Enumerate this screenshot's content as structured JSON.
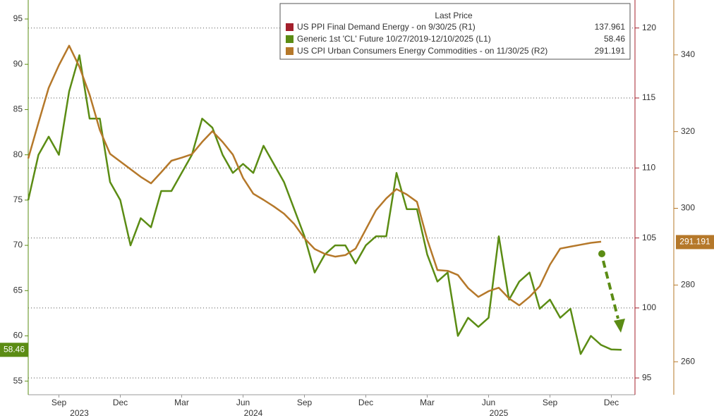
{
  "chart_data": {
    "type": "line",
    "legend_title": "Last Price",
    "legend_corner": "top-right",
    "categories": [
      null,
      null,
      null,
      "Sep",
      null,
      null,
      null,
      null,
      null,
      "Dec",
      null,
      null,
      null,
      null,
      null,
      "Mar",
      null,
      null,
      null,
      null,
      null,
      "Jun",
      null,
      null,
      null,
      null,
      null,
      "Sep",
      null,
      null,
      null,
      null,
      null,
      "Dec",
      null,
      null,
      null,
      null,
      null,
      "Mar",
      null,
      null,
      null,
      null,
      null,
      "Jun",
      null,
      null,
      null,
      null,
      null,
      "Sep",
      null,
      null,
      null,
      null,
      null,
      "Dec",
      null
    ],
    "years": [
      null,
      null,
      null,
      null,
      null,
      "2023",
      null,
      null,
      null,
      null,
      null,
      null,
      null,
      null,
      null,
      null,
      null,
      null,
      null,
      null,
      null,
      null,
      "2024",
      null,
      null,
      null,
      null,
      null,
      null,
      null,
      null,
      null,
      null,
      null,
      null,
      null,
      null,
      null,
      null,
      null,
      null,
      null,
      null,
      null,
      null,
      null,
      "2025",
      null,
      null,
      null,
      null,
      null,
      null,
      null,
      null,
      null,
      null,
      null,
      null
    ],
    "series": [
      {
        "name": "US PPI Final Demand Energy -  on 9/30/25  (R1)",
        "color": "#a31f2b",
        "axis": "y2",
        "last_price": 137.961
      },
      {
        "name": "Generic 1st 'CL' Future 10/27/2019-12/10/2025  (L1)",
        "color": "#5b8c14",
        "axis": "y",
        "last_price": 58.46,
        "values": [
          75,
          80,
          82,
          80,
          87,
          91,
          84,
          84,
          77,
          75,
          70,
          73,
          72,
          76,
          76,
          78,
          80,
          84,
          83,
          80,
          78,
          79,
          78,
          81,
          79,
          77,
          74,
          71,
          67,
          69,
          70,
          70,
          68,
          70,
          71,
          71,
          78,
          74,
          74,
          69,
          66,
          67,
          60,
          62,
          61,
          62,
          71,
          64,
          66,
          67,
          63,
          64,
          62,
          63,
          58,
          60,
          59,
          58.5,
          58.46
        ]
      },
      {
        "name": "US CPI Urban Consumers Energy Commodities -  on 11/30/25  (R2)",
        "color": "#b5782a",
        "axis": "y3",
        "last_price": 291.191,
        "values": [
          313,
          322.3,
          331.4,
          337.3,
          342.4,
          336.9,
          329.6,
          320.4,
          314.2,
          312.2,
          310.2,
          308.2,
          306.5,
          309.4,
          312.4,
          313.2,
          314.1,
          317.3,
          320.1,
          317.3,
          314,
          307.9,
          303.8,
          302.2,
          300.5,
          298.6,
          295.9,
          292.2,
          289.4,
          288.1,
          287.4,
          287.8,
          289.5,
          294.5,
          299.5,
          302.6,
          305,
          303.6,
          301.7,
          291.9,
          283.9,
          283.7,
          282.6,
          279.2,
          276.9,
          278.4,
          279.3,
          276.5,
          274.7,
          276.9,
          279.7,
          285.3,
          289.5,
          290,
          290.5,
          291,
          291.3,
          null,
          null
        ]
      }
    ],
    "ylim": [
      53.5,
      97.1
    ],
    "yticks": [
      55,
      60,
      65,
      70,
      75,
      80,
      85,
      90,
      95
    ],
    "y2lim": [
      93.8,
      122.0
    ],
    "y2ticks": [
      95,
      100,
      105,
      110,
      115,
      120
    ],
    "y3lim": [
      251.4,
      354.3
    ],
    "y3ticks": [
      260,
      280,
      300,
      320,
      340
    ],
    "grid": true
  }
}
